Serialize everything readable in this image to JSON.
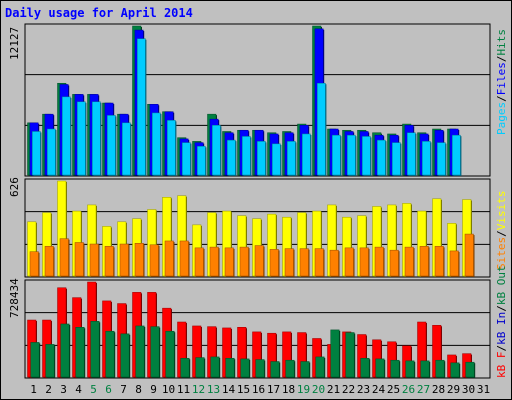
{
  "title": "Daily usage for April 2014",
  "colors": {
    "background": "#c0c0c0",
    "title": "#0000ff",
    "pages": "#00ccff",
    "files": "#0000ff",
    "hits": "#008040",
    "visits": "#ffff00",
    "sites": "#ff8000",
    "kb_in": "#0000cc",
    "kb_out": "#008040",
    "kb_f": "#ff0000",
    "weekend_label": "#008040",
    "weekday_label": "#000000"
  },
  "panels": {
    "top": {
      "max_label": "12127",
      "legend": [
        "Pages",
        "/",
        "Files",
        "/",
        "Hits"
      ]
    },
    "middle": {
      "max_label": "626",
      "legend": [
        "Sites",
        "/",
        "Visits"
      ]
    },
    "bottom": {
      "max_label": "728434",
      "legend": [
        "kB F",
        "/",
        "kB In",
        "/",
        "kB Out"
      ]
    }
  },
  "chart_data": {
    "type": "bar",
    "title": "Daily usage for April 2014",
    "categories": [
      "1",
      "2",
      "3",
      "4",
      "5",
      "6",
      "7",
      "8",
      "9",
      "10",
      "11",
      "12",
      "13",
      "14",
      "15",
      "16",
      "17",
      "18",
      "19",
      "20",
      "21",
      "22",
      "23",
      "24",
      "25",
      "26",
      "27",
      "28",
      "29",
      "30",
      "31"
    ],
    "weekend_days": [
      "5",
      "6",
      "12",
      "13",
      "19",
      "20",
      "26",
      "27"
    ],
    "hits_files_pages": {
      "ylim": [
        0,
        12127
      ],
      "series": [
        {
          "name": "Hits",
          "values": [
            4300,
            5000,
            7500,
            6600,
            6600,
            5900,
            5000,
            12127,
            5800,
            5200,
            3100,
            2800,
            5000,
            3600,
            3700,
            3700,
            3500,
            3600,
            4200,
            12127,
            3800,
            3700,
            3700,
            3500,
            3400,
            4200,
            3500,
            3800,
            3800,
            0,
            0
          ]
        },
        {
          "name": "Files",
          "values": [
            4300,
            5000,
            7400,
            6600,
            6600,
            5900,
            5000,
            11800,
            5800,
            5200,
            3000,
            2700,
            4600,
            3500,
            3700,
            3700,
            3400,
            3500,
            4100,
            11900,
            3800,
            3600,
            3600,
            3300,
            3300,
            4100,
            3400,
            3700,
            3800,
            0,
            0
          ]
        },
        {
          "name": "Pages",
          "values": [
            3600,
            3800,
            6400,
            6000,
            6000,
            4900,
            4300,
            11100,
            5100,
            4500,
            2700,
            2400,
            4100,
            2900,
            3200,
            2800,
            2600,
            2800,
            3400,
            7500,
            3300,
            3300,
            3200,
            2900,
            2700,
            3500,
            2800,
            2700,
            3300,
            0,
            0
          ]
        }
      ]
    },
    "visits_sites": {
      "ylim": [
        0,
        626
      ],
      "series": [
        {
          "name": "Visits",
          "values": [
            360,
            420,
            626,
            430,
            470,
            330,
            360,
            380,
            440,
            520,
            530,
            340,
            420,
            430,
            400,
            380,
            410,
            390,
            420,
            430,
            470,
            390,
            400,
            460,
            470,
            480,
            430,
            510,
            350,
            505,
            0
          ]
        },
        {
          "name": "Sites",
          "values": [
            165,
            200,
            250,
            225,
            215,
            200,
            215,
            220,
            210,
            235,
            235,
            190,
            195,
            190,
            195,
            205,
            180,
            185,
            185,
            185,
            175,
            190,
            190,
            195,
            175,
            195,
            200,
            200,
            170,
            280,
            0
          ]
        }
      ]
    },
    "traffic": {
      "ylim": [
        0,
        728434
      ],
      "series": [
        {
          "name": "kB F",
          "values": [
            440000,
            440000,
            685000,
            610000,
            728434,
            585000,
            565000,
            650000,
            650000,
            530000,
            425000,
            395000,
            390000,
            380000,
            385000,
            350000,
            340000,
            350000,
            345000,
            300000,
            255000,
            350000,
            330000,
            290000,
            275000,
            245000,
            425000,
            400000,
            175000,
            185000,
            0
          ]
        },
        {
          "name": "kB In",
          "values": [
            0,
            0,
            0,
            0,
            0,
            0,
            0,
            0,
            0,
            0,
            0,
            0,
            0,
            0,
            0,
            0,
            0,
            0,
            0,
            0,
            0,
            0,
            0,
            0,
            0,
            0,
            0,
            0,
            0,
            0,
            0
          ]
        },
        {
          "name": "kB Out",
          "values": [
            270000,
            255000,
            410000,
            385000,
            430000,
            355000,
            335000,
            395000,
            390000,
            355000,
            150000,
            155000,
            160000,
            150000,
            145000,
            140000,
            125000,
            135000,
            125000,
            160000,
            365000,
            345000,
            150000,
            145000,
            135000,
            130000,
            130000,
            135000,
            115000,
            120000,
            0
          ]
        }
      ]
    }
  }
}
